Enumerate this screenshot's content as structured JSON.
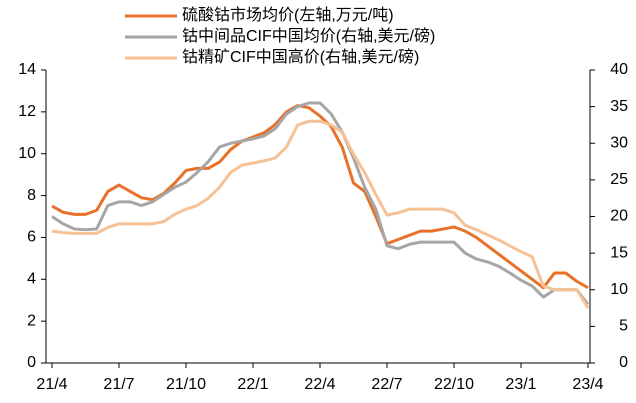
{
  "chart_data": {
    "type": "line",
    "categories": [
      "21/4",
      null,
      null,
      null,
      null,
      null,
      "21/7",
      null,
      null,
      null,
      null,
      null,
      "21/10",
      null,
      null,
      null,
      null,
      null,
      "22/1",
      null,
      null,
      null,
      null,
      null,
      "22/4",
      null,
      null,
      null,
      null,
      null,
      "22/7",
      null,
      null,
      null,
      null,
      null,
      "22/10",
      null,
      null,
      null,
      null,
      null,
      "23/1",
      null,
      null,
      null,
      null,
      null,
      "23/4"
    ],
    "series": [
      {
        "name": "硫酸钴市场均价(左轴,万元/吨)",
        "color": "#e8712a",
        "axis": "y",
        "values": [
          7.5,
          7.2,
          7.1,
          7.1,
          7.3,
          8.2,
          8.5,
          8.2,
          7.9,
          7.8,
          8.1,
          8.6,
          9.2,
          9.3,
          9.3,
          9.6,
          10.2,
          10.6,
          10.8,
          11.0,
          11.4,
          12.0,
          12.3,
          12.2,
          11.8,
          11.3,
          10.3,
          8.6,
          8.2,
          7.0,
          5.7,
          5.9,
          6.1,
          6.3,
          6.3,
          6.4,
          6.5,
          6.3,
          6.0,
          5.6,
          5.2,
          4.8,
          4.4,
          4.0,
          3.6,
          4.3,
          4.3,
          3.9,
          3.6
        ]
      },
      {
        "name": "钴中间品CIF中国均价(右轴,美元/磅)",
        "color": "#a6a6a6",
        "axis": "y2",
        "values": [
          20,
          19,
          18.3,
          18.2,
          18.3,
          21.5,
          22,
          22,
          21.5,
          22,
          23,
          24,
          24.7,
          26,
          27.5,
          29.5,
          30,
          30.3,
          30.6,
          31,
          32,
          34,
          35,
          35.5,
          35.5,
          34,
          31.5,
          28,
          24,
          21,
          16,
          15.6,
          16.2,
          16.5,
          16.5,
          16.5,
          16.5,
          15,
          14.2,
          13.8,
          13.2,
          12.3,
          11.3,
          10.5,
          9,
          10,
          10,
          10,
          8
        ]
      },
      {
        "name": "钴精矿CIF中国高价(右轴,美元/磅)",
        "color": "#f5c195",
        "axis": "y2",
        "values": [
          18,
          17.8,
          17.7,
          17.7,
          17.7,
          18.5,
          19,
          19,
          19,
          19,
          19.3,
          20.3,
          21,
          21.5,
          22.5,
          24,
          26,
          27,
          27.3,
          27.6,
          28,
          29.5,
          32.5,
          33,
          33,
          32.5,
          31.5,
          28.5,
          26,
          23,
          20.2,
          20.5,
          21,
          21,
          21,
          21,
          20.5,
          18.8,
          18.2,
          17.5,
          16.8,
          16,
          15.2,
          14.5,
          10.5,
          10,
          10,
          10,
          7.5
        ]
      }
    ],
    "ylim": [
      0,
      14
    ],
    "yticks": [
      0,
      2,
      4,
      6,
      8,
      10,
      12,
      14
    ],
    "y2lim": [
      0,
      40
    ],
    "y2ticks": [
      0,
      5,
      10,
      15,
      20,
      25,
      30,
      35,
      40
    ]
  }
}
